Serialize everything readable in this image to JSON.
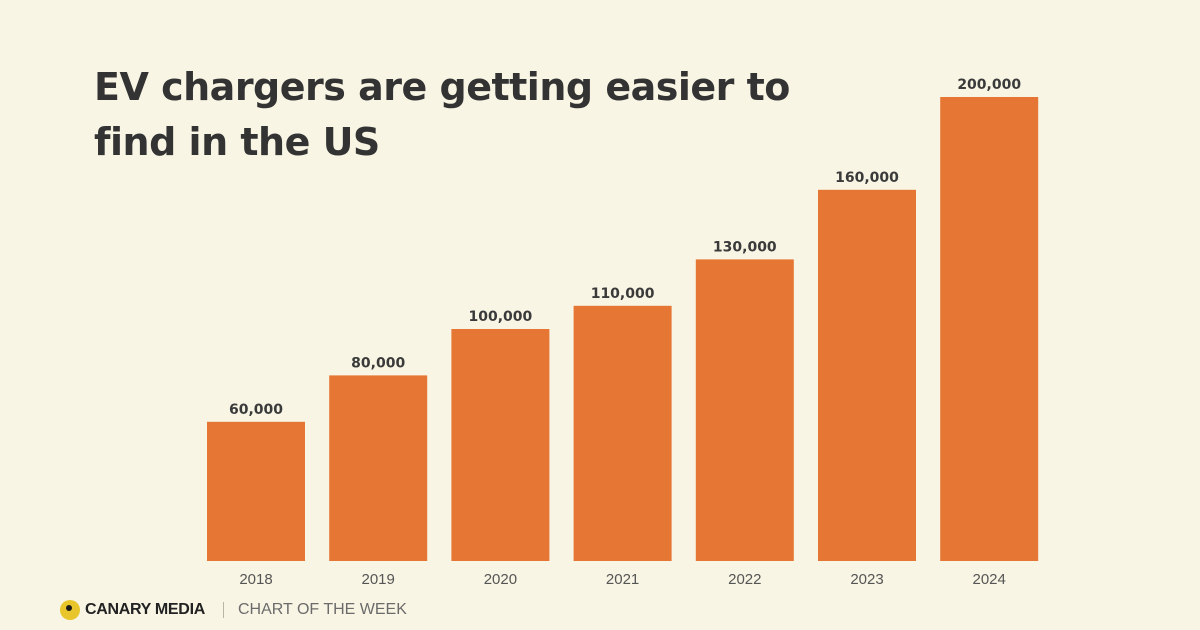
{
  "title": "EV chargers are getting easier to find in the US",
  "footer": {
    "brand": "CANARY MEDIA",
    "tagline": "CHART OF THE WEEK",
    "logo_icon": "canary-circle-icon",
    "logo_color": "#e8c62b"
  },
  "colors": {
    "bar": "#e67634",
    "background": "#f8f5e4"
  },
  "chart_data": {
    "type": "bar",
    "categories": [
      "2018",
      "2019",
      "2020",
      "2021",
      "2022",
      "2023",
      "2024"
    ],
    "values": [
      60000,
      80000,
      100000,
      110000,
      130000,
      160000,
      200000
    ],
    "value_labels": [
      "60,000",
      "80,000",
      "100,000",
      "110,000",
      "130,000",
      "160,000",
      "200,000"
    ],
    "title": "EV chargers are getting easier to find in the US",
    "xlabel": "",
    "ylabel": "",
    "ylim": [
      0,
      200000
    ],
    "grid": false,
    "legend": "none"
  }
}
